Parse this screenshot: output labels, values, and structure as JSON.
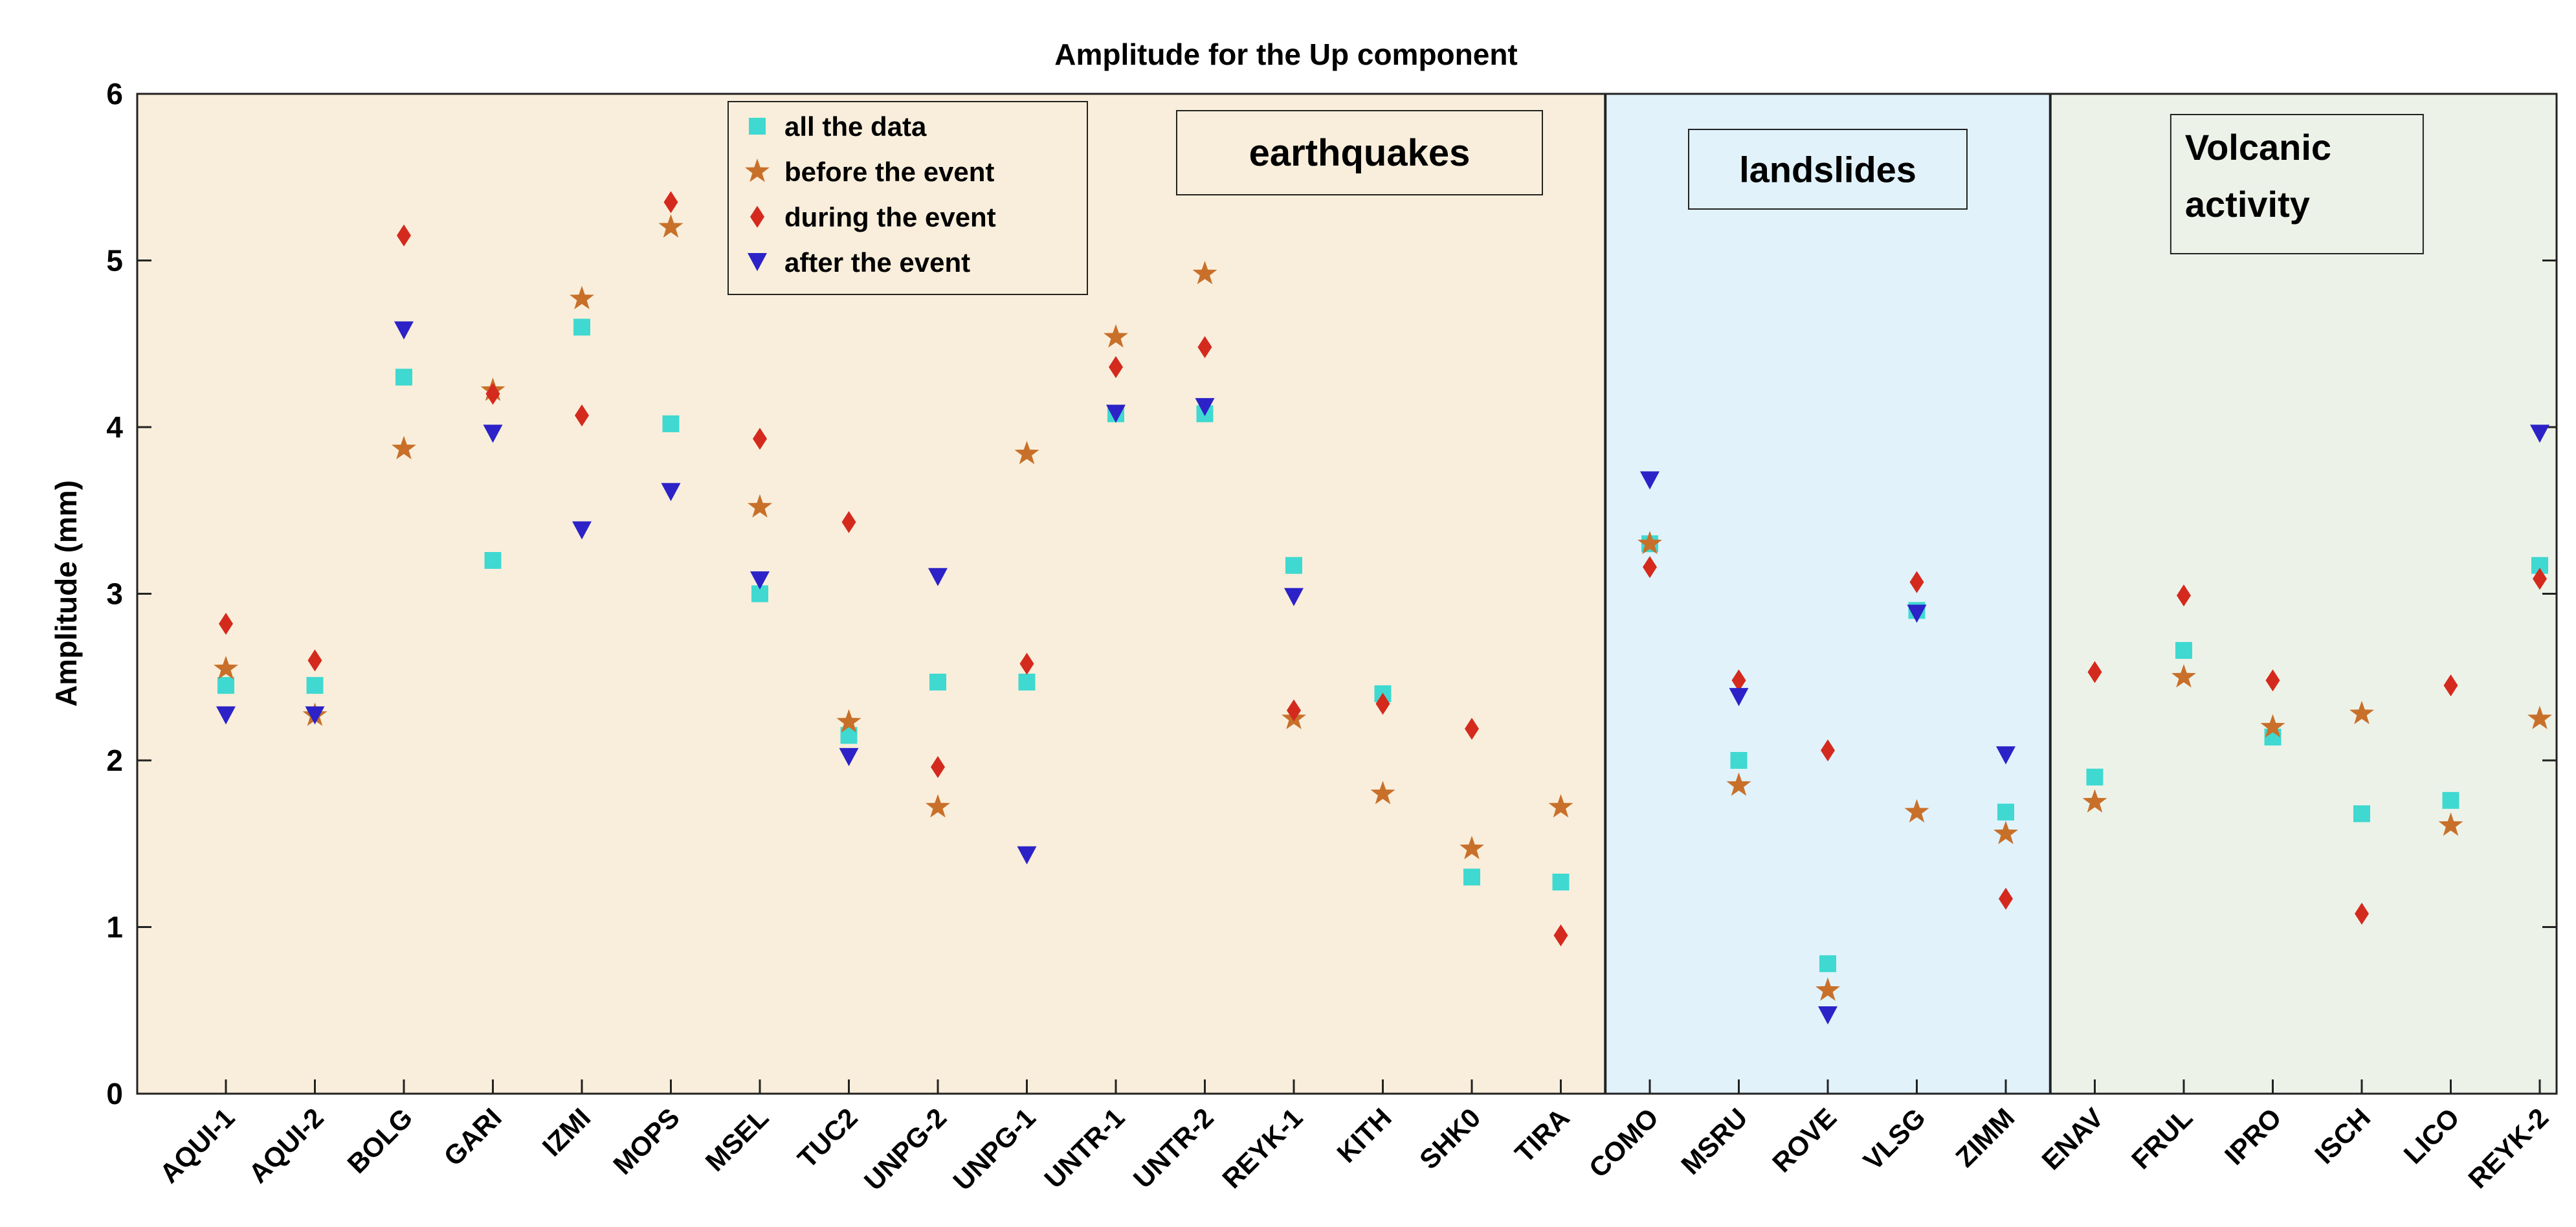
{
  "chart_data": {
    "type": "scatter",
    "title": "Amplitude for the Up component",
    "xlabel": "",
    "ylabel": "Amplitude (mm)",
    "ylim": [
      0,
      6
    ],
    "yticks": [
      0,
      1,
      2,
      3,
      4,
      5,
      6
    ],
    "grid": false,
    "legend_position": "top-center",
    "categories": [
      "AQUI-1",
      "AQUI-2",
      "BOLG",
      "GARI",
      "IZMI",
      "MOPS",
      "MSEL",
      "TUC2",
      "UNPG-2",
      "UNPG-1",
      "UNTR-1",
      "UNTR-2",
      "REYK-1",
      "KITH",
      "SHK0",
      "TIRA",
      "COMO",
      "MSRU",
      "ROVE",
      "VLSG",
      "ZIMM",
      "ENAV",
      "FRUL",
      "IPRO",
      "ISCH",
      "LICO",
      "REYK-2"
    ],
    "regions": [
      {
        "label": "earthquakes",
        "start": 0,
        "end": 15,
        "color": "#f9eedb"
      },
      {
        "label": "landslides",
        "start": 16,
        "end": 20,
        "color": "#e1f2fb"
      },
      {
        "label": "Volcanic activity",
        "label_lines": [
          "Volcanic",
          "activity"
        ],
        "start": 21,
        "end": 26,
        "color": "#edf2e8"
      }
    ],
    "series": [
      {
        "name": "all the data",
        "marker": "square",
        "color": "#3fd9d1",
        "values": [
          2.45,
          2.45,
          4.3,
          3.2,
          4.6,
          4.02,
          3.0,
          2.15,
          2.47,
          2.47,
          4.08,
          4.08,
          3.17,
          2.4,
          1.3,
          1.27,
          3.3,
          2.0,
          0.78,
          2.9,
          1.69,
          1.9,
          2.66,
          2.14,
          1.68,
          1.76,
          3.17
        ]
      },
      {
        "name": "before the event",
        "marker": "star",
        "color": "#c8702a",
        "values": [
          2.55,
          2.27,
          3.87,
          4.22,
          4.77,
          5.2,
          3.52,
          2.23,
          1.72,
          3.84,
          4.54,
          4.92,
          2.25,
          1.8,
          1.47,
          1.72,
          3.3,
          1.85,
          0.62,
          1.69,
          1.56,
          1.75,
          2.5,
          2.2,
          2.28,
          1.61,
          2.25
        ]
      },
      {
        "name": "during the event",
        "marker": "diamond",
        "color": "#d42a1e",
        "values": [
          2.82,
          2.6,
          5.15,
          4.2,
          4.07,
          5.35,
          3.93,
          3.43,
          1.96,
          2.58,
          4.36,
          4.48,
          2.3,
          2.34,
          2.19,
          0.95,
          3.16,
          2.48,
          2.06,
          3.07,
          1.17,
          2.53,
          2.99,
          2.48,
          1.08,
          2.45,
          3.09
        ]
      },
      {
        "name": "after the event",
        "marker": "triangle-down",
        "color": "#2c22c7",
        "values": [
          2.27,
          2.27,
          4.58,
          3.96,
          3.38,
          3.61,
          3.08,
          2.02,
          3.1,
          1.43,
          4.08,
          4.12,
          2.98,
          null,
          null,
          null,
          3.68,
          2.38,
          0.47,
          2.88,
          2.03,
          null,
          null,
          null,
          null,
          null,
          3.96
        ]
      }
    ]
  }
}
